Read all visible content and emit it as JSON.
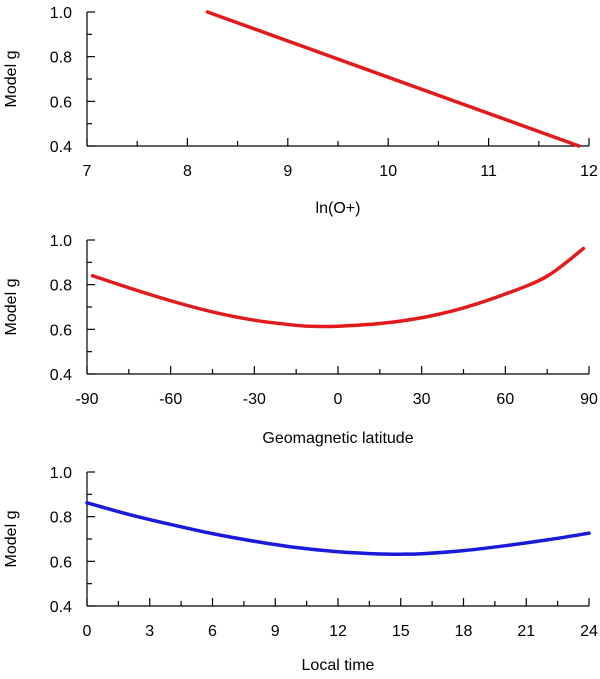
{
  "chart_data": [
    {
      "type": "line",
      "xlabel": "ln(O+)",
      "ylabel": "Model g",
      "xlim": [
        7,
        12
      ],
      "ylim": [
        0.4,
        1.0
      ],
      "xticks": [
        "7",
        "8",
        "9",
        "10",
        "11",
        "12"
      ],
      "yticks": [
        "0.4",
        "0.6",
        "0.8",
        "1.0"
      ],
      "grid": false,
      "series": [
        {
          "color": "#e31a1c",
          "x": [
            8.2,
            11.9
          ],
          "y": [
            1.0,
            0.4
          ]
        }
      ]
    },
    {
      "type": "line",
      "xlabel": "Geomagnetic latitude",
      "ylabel": "Model g",
      "xlim": [
        -90,
        90
      ],
      "ylim": [
        0.4,
        1.0
      ],
      "xticks": [
        "-90",
        "-60",
        "-30",
        "0",
        "30",
        "60",
        "90"
      ],
      "yticks": [
        "0.4",
        "0.6",
        "0.8",
        "1.0"
      ],
      "grid": false,
      "series": [
        {
          "color": "#e31a1c",
          "x": [
            -88,
            -75,
            -60,
            -45,
            -30,
            -15,
            -8,
            0,
            15,
            30,
            45,
            60,
            75,
            88
          ],
          "y": [
            0.84,
            0.786,
            0.728,
            0.678,
            0.641,
            0.618,
            0.613,
            0.614,
            0.626,
            0.652,
            0.696,
            0.758,
            0.838,
            0.962
          ]
        }
      ]
    },
    {
      "type": "line",
      "xlabel": "Local time",
      "ylabel": "Model g",
      "xlim": [
        0,
        24
      ],
      "ylim": [
        0.4,
        1.0
      ],
      "xticks": [
        "0",
        "3",
        "6",
        "9",
        "12",
        "15",
        "18",
        "21",
        "24"
      ],
      "yticks": [
        "0.4",
        "0.6",
        "0.8",
        "1.0"
      ],
      "grid": false,
      "series": [
        {
          "color": "#1a1adb",
          "x": [
            0,
            2,
            4,
            6,
            8,
            10,
            12,
            14,
            15,
            16,
            18,
            20,
            22,
            24
          ],
          "y": [
            0.862,
            0.81,
            0.765,
            0.724,
            0.69,
            0.662,
            0.643,
            0.633,
            0.632,
            0.634,
            0.648,
            0.67,
            0.696,
            0.726
          ]
        }
      ]
    }
  ]
}
